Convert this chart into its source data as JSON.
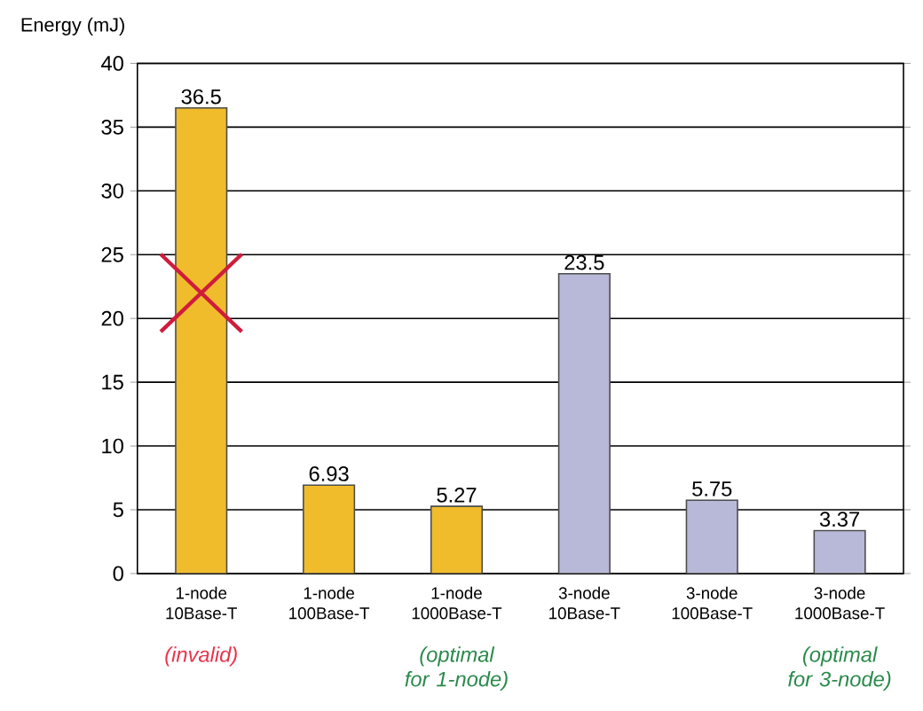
{
  "chart_data": {
    "type": "bar",
    "ylabel": "Energy (mJ)",
    "categories": [
      "1-node 10Base-T",
      "1-node 100Base-T",
      "1-node 1000Base-T",
      "3-node 10Base-T",
      "3-node 100Base-T",
      "3-node 1000Base-T"
    ],
    "values": [
      36.5,
      6.93,
      5.27,
      23.5,
      5.75,
      3.37
    ],
    "colors": [
      "#f0bc2c",
      "#f0bc2c",
      "#f0bc2c",
      "#b8b8d8",
      "#b8b8d8",
      "#b8b8d8"
    ],
    "value_labels": [
      "36.5",
      "6.93",
      "5.27",
      "23.5",
      "5.75",
      "3.37"
    ],
    "ylim": [
      0,
      40
    ],
    "yticks": [
      0,
      5,
      10,
      15,
      20,
      25,
      30,
      35,
      40
    ],
    "grid": "y",
    "annotations": [
      "(invalid)",
      "(optimal for 1-node)",
      "(optimal for 3-node)"
    ]
  }
}
